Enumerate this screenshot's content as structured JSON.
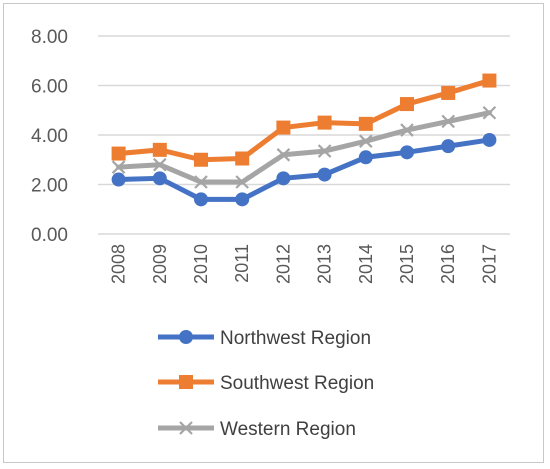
{
  "chart_data": {
    "type": "line",
    "categories": [
      "2008",
      "2009",
      "2010",
      "2011",
      "2012",
      "2013",
      "2014",
      "2015",
      "2016",
      "2017"
    ],
    "series": [
      {
        "name": "Northwest Region",
        "color": "#4472c4",
        "marker": "circle",
        "values": [
          2.2,
          2.25,
          1.4,
          1.4,
          2.25,
          2.4,
          3.1,
          3.3,
          3.55,
          3.8
        ]
      },
      {
        "name": "Southwest Region",
        "color": "#ed7d31",
        "marker": "square",
        "values": [
          3.25,
          3.4,
          3.0,
          3.05,
          4.3,
          4.5,
          4.45,
          5.25,
          5.7,
          6.2
        ]
      },
      {
        "name": "Western Region",
        "color": "#a5a5a5",
        "marker": "x",
        "values": [
          2.7,
          2.8,
          2.1,
          2.1,
          3.2,
          3.35,
          3.75,
          4.2,
          4.55,
          4.9
        ]
      }
    ],
    "y_ticks": [
      "0.00",
      "2.00",
      "4.00",
      "6.00",
      "8.00"
    ],
    "ylim": [
      0,
      8
    ],
    "grid": true,
    "legend": "bottom"
  }
}
